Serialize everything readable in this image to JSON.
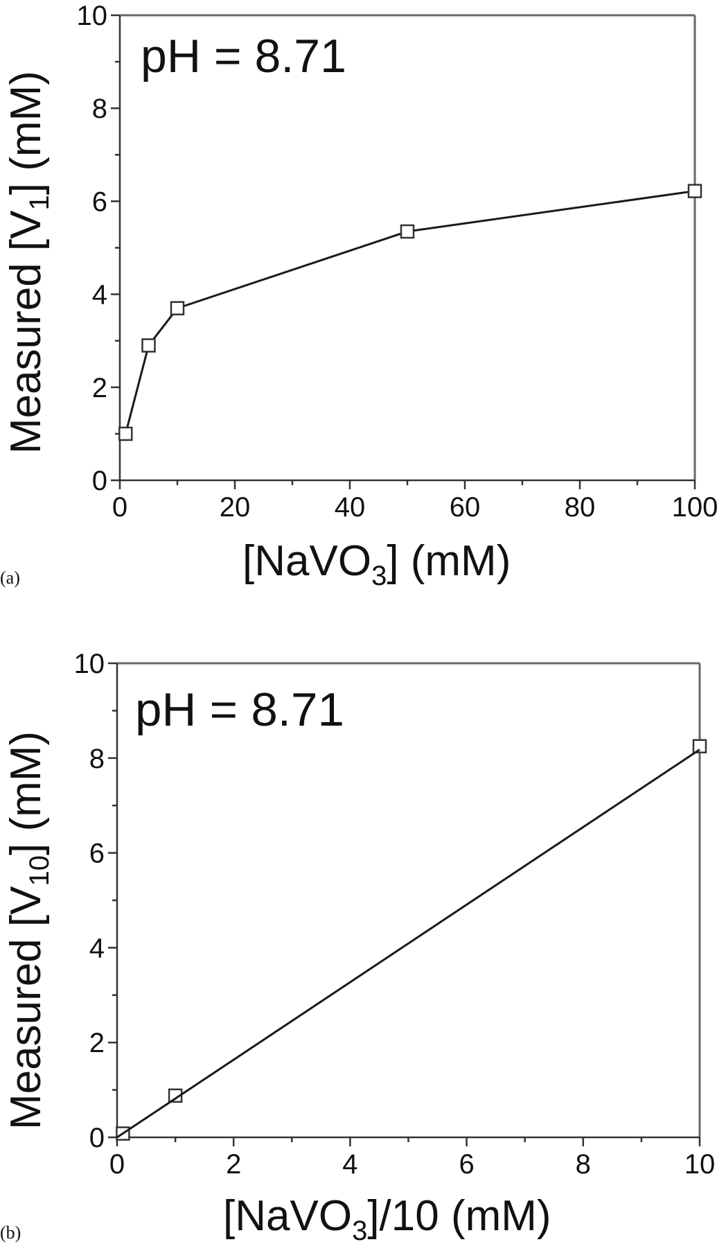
{
  "figure": {
    "panels": [
      {
        "label": "(a)",
        "annotation": "pH = 8.71",
        "ylabel_main": "Measured [V",
        "ylabel_sub": "1",
        "ylabel_tail": "] (mM)",
        "xlabel_main": "[NaVO",
        "xlabel_sub": "3",
        "xlabel_tail": "] (mM)"
      },
      {
        "label": "(b)",
        "annotation": "pH = 8.71",
        "ylabel_main": "Measured [V",
        "ylabel_sub": "10",
        "ylabel_tail": "] (mM)",
        "xlabel_main": "[NaVO",
        "xlabel_sub": "3",
        "xlabel_tail": "]/10 (mM)"
      }
    ]
  },
  "colors": {
    "line": "#1a1a1a",
    "frame": "#555555",
    "marker_edge": "#333333",
    "marker_fill": "#ffffff"
  },
  "chart_data": [
    {
      "type": "line",
      "title": "",
      "panel": "(a)",
      "annotation": "pH = 8.71",
      "xlabel": "[NaVO3] (mM)",
      "ylabel": "Measured [V1] (mM)",
      "xlim": [
        0,
        100
      ],
      "ylim": [
        0,
        10
      ],
      "xticks": [
        0,
        20,
        40,
        60,
        80,
        100
      ],
      "yticks": [
        0,
        2,
        4,
        6,
        8,
        10
      ],
      "x_minor_step": 10,
      "y_minor_step": 1,
      "grid": false,
      "legend": null,
      "series": [
        {
          "name": "Measured V1",
          "marker": "open-square",
          "line": "connected",
          "x": [
            1,
            5,
            10,
            50,
            100
          ],
          "values": [
            1.0,
            2.9,
            3.7,
            5.35,
            6.22
          ]
        }
      ]
    },
    {
      "type": "scatter",
      "title": "",
      "panel": "(b)",
      "annotation": "pH = 8.71",
      "xlabel": "[NaVO3]/10 (mM)",
      "ylabel": "Measured [V10] (mM)",
      "xlim": [
        0,
        10
      ],
      "ylim": [
        0,
        10
      ],
      "xticks": [
        0,
        2,
        4,
        6,
        8,
        10
      ],
      "yticks": [
        0,
        2,
        4,
        6,
        8,
        10
      ],
      "x_minor_step": 1,
      "y_minor_step": 1,
      "grid": false,
      "legend": null,
      "series": [
        {
          "name": "Measured V10",
          "marker": "open-square",
          "line": "none",
          "x": [
            0.1,
            1,
            10
          ],
          "values": [
            0.08,
            0.88,
            8.25
          ]
        },
        {
          "name": "Linear fit",
          "marker": "none",
          "line": "solid",
          "x": [
            0,
            10
          ],
          "values": [
            0,
            8.18
          ]
        }
      ]
    }
  ]
}
